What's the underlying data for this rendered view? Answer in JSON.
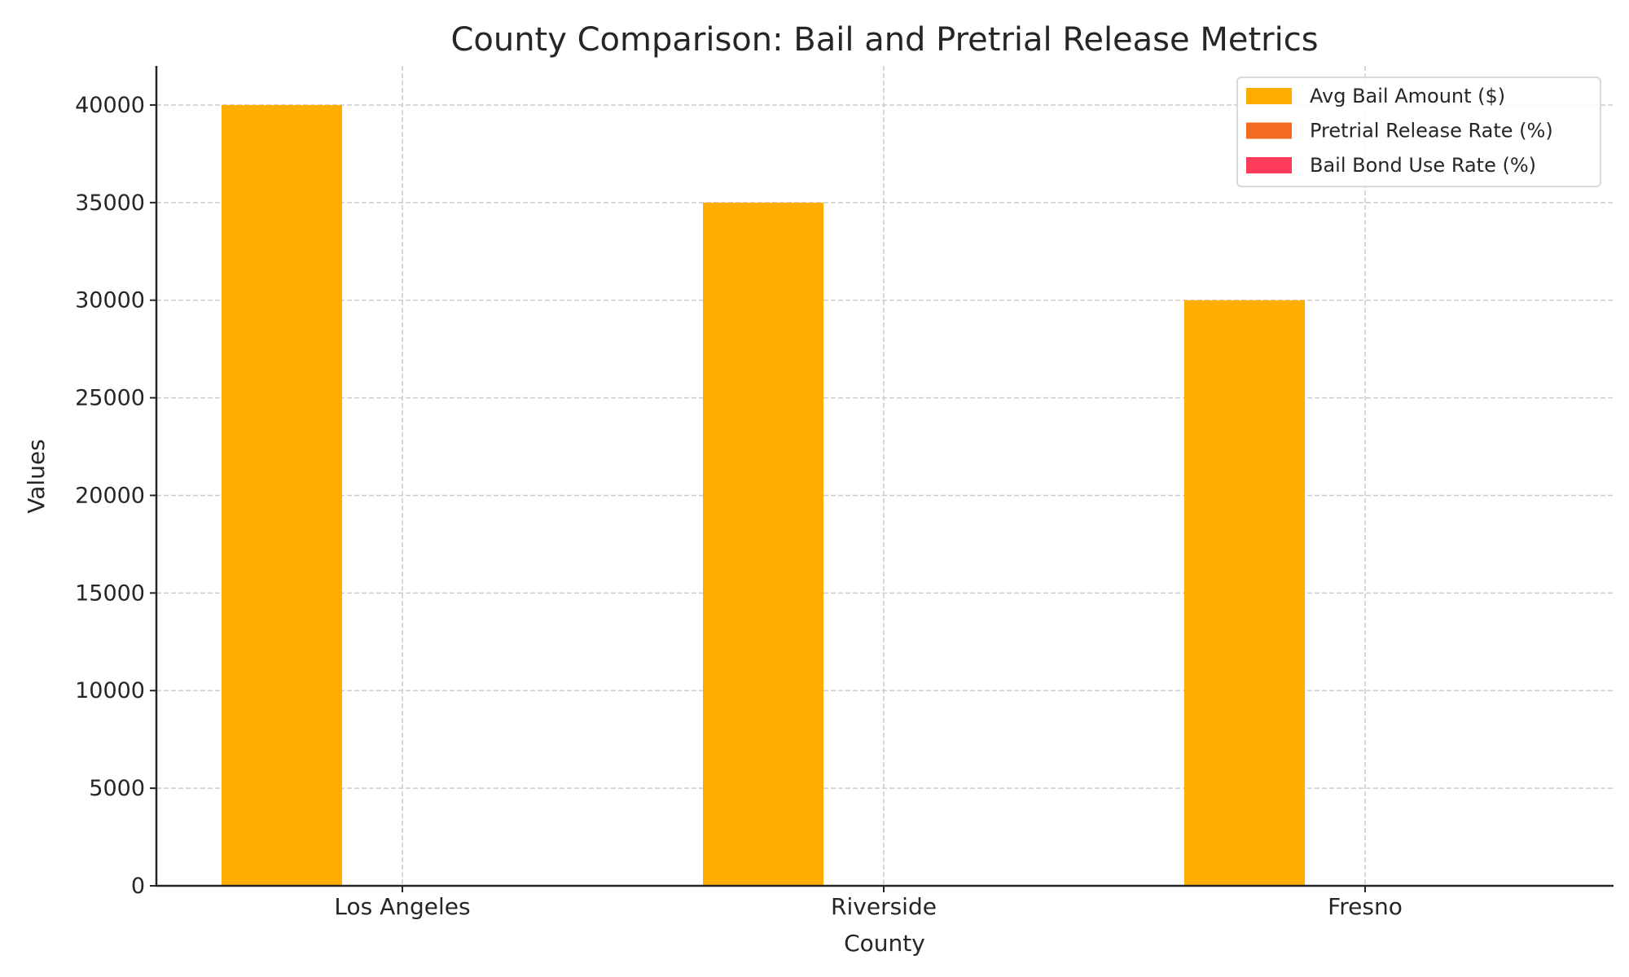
{
  "chart_data": {
    "type": "bar",
    "title": "County Comparison: Bail and Pretrial Release Metrics",
    "xlabel": "County",
    "ylabel": "Values",
    "categories": [
      "Los Angeles",
      "Riverside",
      "Fresno"
    ],
    "series": [
      {
        "name": "Avg Bail Amount ($)",
        "values": [
          40000,
          35000,
          30000
        ],
        "color": "#FFAE00"
      },
      {
        "name": "Pretrial Release Rate (%)",
        "values": [
          null,
          null,
          null
        ],
        "color": "#F26B21"
      },
      {
        "name": "Bail Bond Use Rate (%)",
        "values": [
          null,
          null,
          null
        ],
        "color": "#FF3B5C"
      }
    ],
    "ylim": [
      0,
      42000
    ],
    "yticks": [
      0,
      5000,
      10000,
      15000,
      20000,
      25000,
      30000,
      35000,
      40000
    ],
    "grid": true,
    "legend_position": "top-right"
  }
}
